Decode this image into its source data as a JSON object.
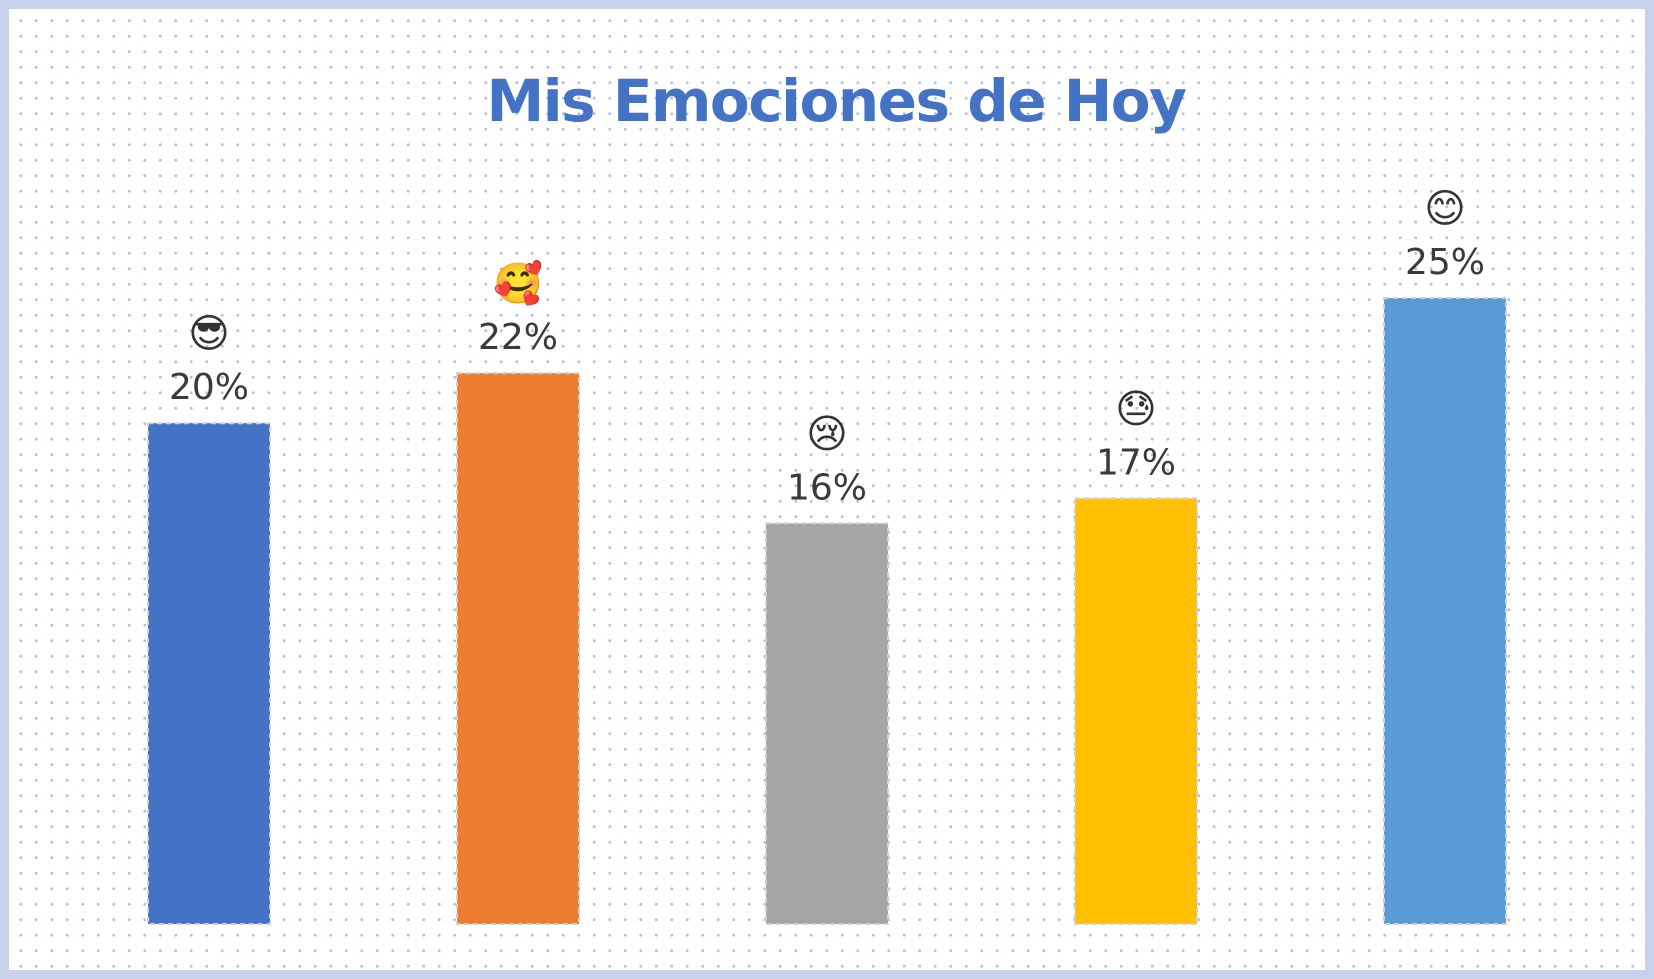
{
  "chart_data": {
    "type": "bar",
    "title": "Mis Emociones de Hoy",
    "categories": [
      "😎",
      "🥰",
      "😢",
      "😓",
      "😊"
    ],
    "values": [
      20,
      22,
      16,
      17,
      25
    ],
    "value_labels": [
      "20%",
      "22%",
      "16%",
      "17%",
      "25%"
    ],
    "unit": "%",
    "colors": [
      "#4472c4",
      "#ed7d31",
      "#a5a5a5",
      "#ffc000",
      "#5b9bd5"
    ],
    "ylim": [
      0,
      25
    ],
    "grid": false,
    "legend": "none"
  }
}
